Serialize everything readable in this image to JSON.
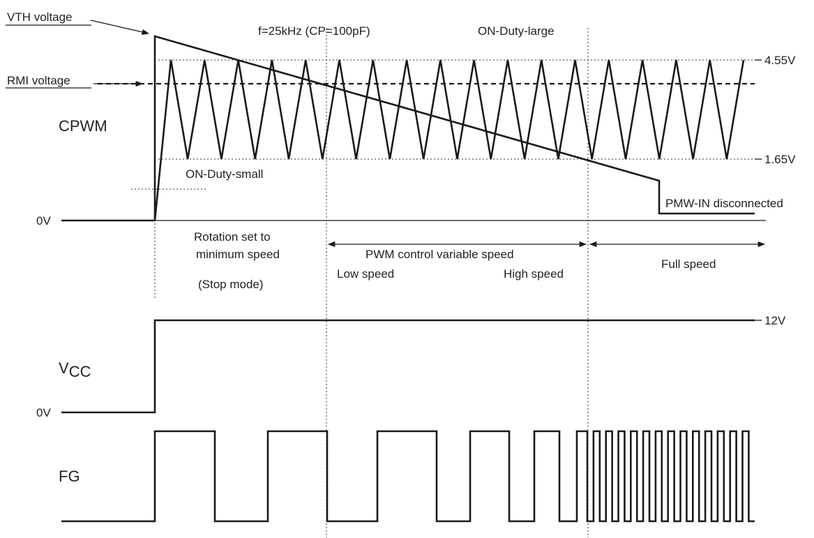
{
  "labels": {
    "vth_voltage": "VTH voltage",
    "rmi_voltage": "RMI voltage",
    "cpwm": "CPWM",
    "frequency_note": "f=25kHz (CP=100pF)",
    "on_duty_large": "ON-Duty-large",
    "on_duty_small": "ON-Duty-small",
    "level_high": "4.55V",
    "level_low": "1.65V",
    "zero_volt_top": "0V",
    "pwm_in_disconnected": "PMW-IN disconnected",
    "rotation_line1": "Rotation set to",
    "rotation_line2": "minimum speed",
    "stop_mode": "(Stop mode)",
    "pwm_control": "PWM control variable speed",
    "low_speed": "Low speed",
    "high_speed": "High speed",
    "full_speed": "Full speed",
    "vcc_main": "V",
    "vcc_sub": "CC",
    "vcc_level": "12V",
    "zero_volt_vcc": "0V",
    "fg": "FG"
  },
  "triangle_wave": {
    "cycles": 17
  },
  "fg_pulses": {
    "slow_phase_transitions": [
      222,
      308,
      384,
      469,
      541,
      626,
      674,
      730,
      766,
      802,
      827,
      842
    ],
    "full_speed_period": 17.8,
    "full_speed_count": 13
  }
}
